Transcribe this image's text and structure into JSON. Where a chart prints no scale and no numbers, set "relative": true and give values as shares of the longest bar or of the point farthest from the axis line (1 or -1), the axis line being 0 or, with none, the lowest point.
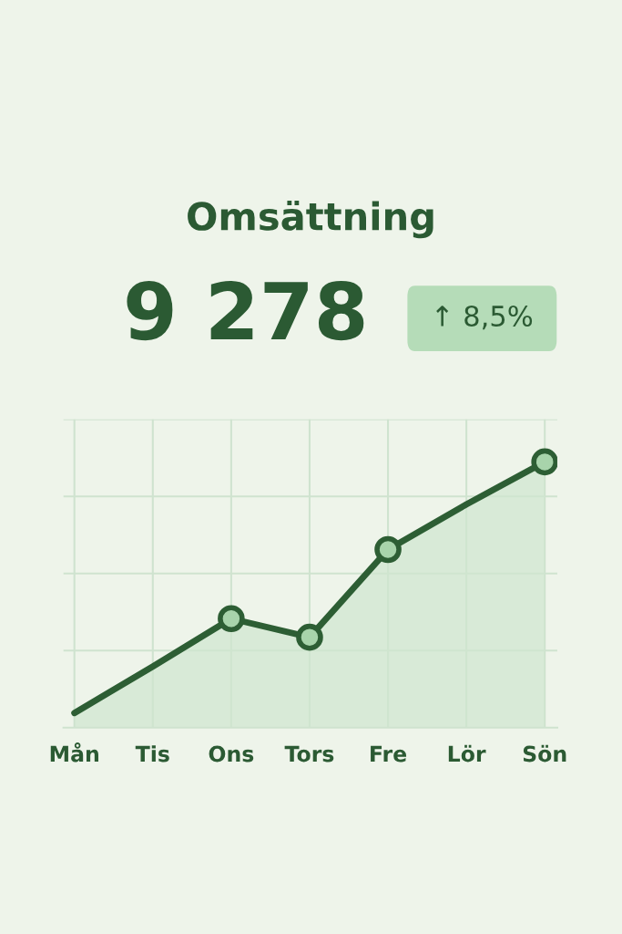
{
  "chart_data": {
    "type": "area",
    "title": "Omsättning",
    "annotations": [
      "9 278",
      "↑ 8,5%"
    ],
    "categories": [
      "Mån",
      "Tis",
      "Ons",
      "Tors",
      "Fre",
      "Lör",
      "Sön"
    ],
    "relative": true,
    "grid": true,
    "tick_labels": "x",
    "series": [
      {
        "color": "#2d5e34",
        "values": [
          0.055,
          0.23,
          0.41,
          0.34,
          0.67,
          0.84,
          1.0
        ]
      },
      {
        "type": "scatter",
        "marker": "circle",
        "color": "#a8d4ab",
        "values": [
          null,
          null,
          0.41,
          0.34,
          0.67,
          null,
          1.0
        ]
      }
    ]
  }
}
